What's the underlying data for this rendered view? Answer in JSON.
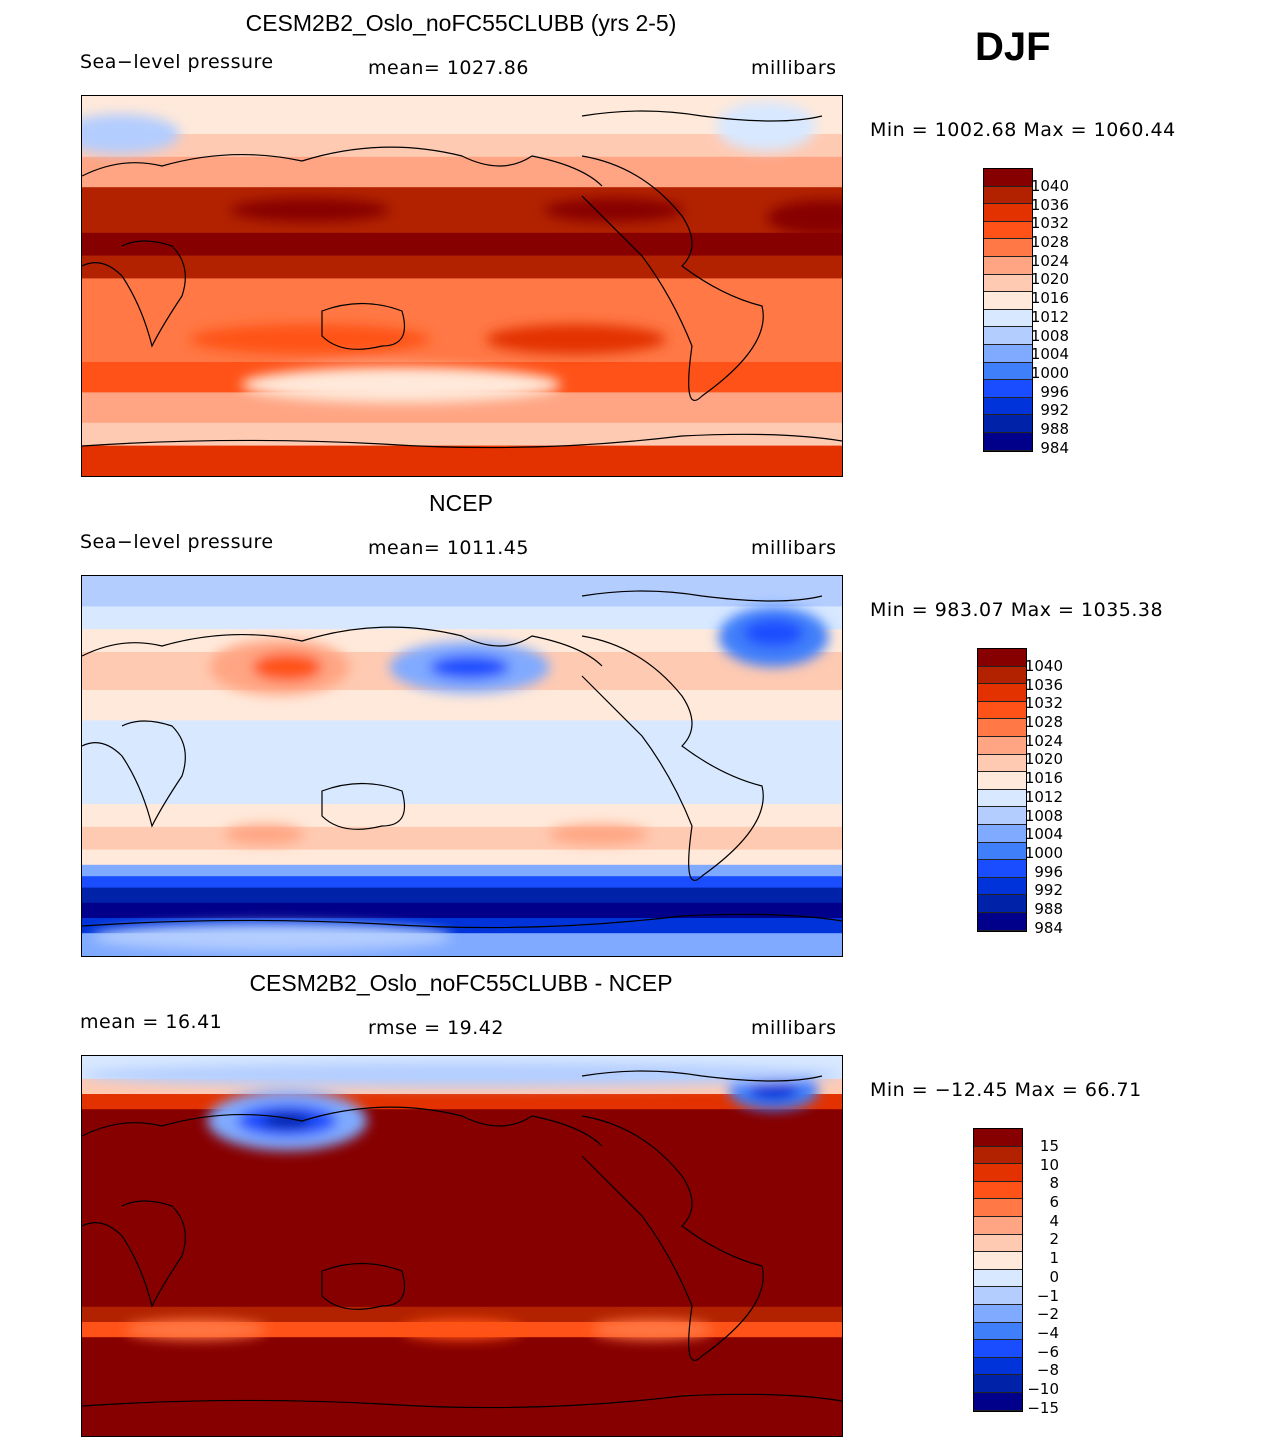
{
  "season": "DJF",
  "palette": [
    "#00008a",
    "#0022a8",
    "#0033d9",
    "#1a4dff",
    "#3f7ffa",
    "#80aaff",
    "#b3cdff",
    "#d8e8ff",
    "#ffe9da",
    "#ffcab2",
    "#ffa583",
    "#ff7845",
    "#ff5218",
    "#e33200",
    "#b22200",
    "#870000"
  ],
  "panels": [
    {
      "title": "CESM2B2_Oslo_noFC55CLUBB (yrs 2-5)",
      "left": "Sea−level pressure",
      "center": "mean=  1027.86",
      "right": "millibars",
      "minmax": "Min  =  1002.68  Max  =  1060.44",
      "levels": [
        "1040",
        "1036",
        "1032",
        "1028",
        "1024",
        "1020",
        "1016",
        "1012",
        "1008",
        "1004",
        "1000",
        "996",
        "992",
        "988",
        "984"
      ]
    },
    {
      "title": "NCEP",
      "left": "Sea−level pressure",
      "center": "mean=  1011.45",
      "right": "millibars",
      "minmax": "Min  =  983.07  Max  =  1035.38",
      "levels": [
        "1040",
        "1036",
        "1032",
        "1028",
        "1024",
        "1020",
        "1016",
        "1012",
        "1008",
        "1004",
        "1000",
        "996",
        "992",
        "988",
        "984"
      ]
    },
    {
      "title": "CESM2B2_Oslo_noFC55CLUBB - NCEP",
      "left": "mean  =    16.41",
      "center": "rmse  =    19.42",
      "right": "millibars",
      "minmax": "Min  =  −12.45  Max  =    66.71",
      "levels": [
        "15",
        "10",
        "8",
        "6",
        "4",
        "2",
        "1",
        "0",
        "−1",
        "−2",
        "−4",
        "−6",
        "−8",
        "−10",
        "−15"
      ]
    }
  ]
}
